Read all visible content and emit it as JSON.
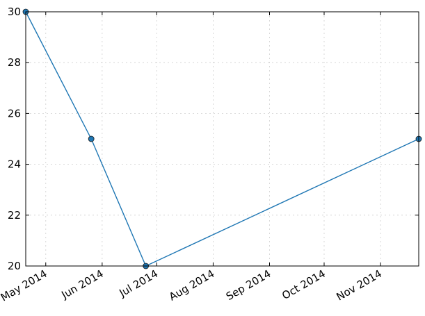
{
  "chart_data": {
    "type": "line",
    "title": "",
    "xlabel": "",
    "ylabel": "",
    "x": [
      "2014-04-20",
      "2014-05-26",
      "2014-06-25",
      "2014-11-22"
    ],
    "series": [
      {
        "values": [
          30,
          25,
          20,
          25
        ]
      }
    ],
    "xlim": [
      "2014-04-20",
      "2014-11-22"
    ],
    "ylim": [
      20,
      30
    ],
    "x_ticks": [
      "2014-05-01",
      "2014-06-01",
      "2014-07-01",
      "2014-08-01",
      "2014-09-01",
      "2014-10-01",
      "2014-11-01"
    ],
    "x_tick_labels": [
      "May 2014",
      "Jun 2014",
      "Jul 2014",
      "Aug 2014",
      "Sep 2014",
      "Oct 2014",
      "Nov 2014"
    ],
    "y_ticks": [
      20,
      22,
      24,
      26,
      28,
      30
    ],
    "y_tick_labels": [
      "20",
      "22",
      "24",
      "26",
      "28",
      "30"
    ],
    "grid": true,
    "line_color": "#1f77b4",
    "marker": "circle"
  }
}
